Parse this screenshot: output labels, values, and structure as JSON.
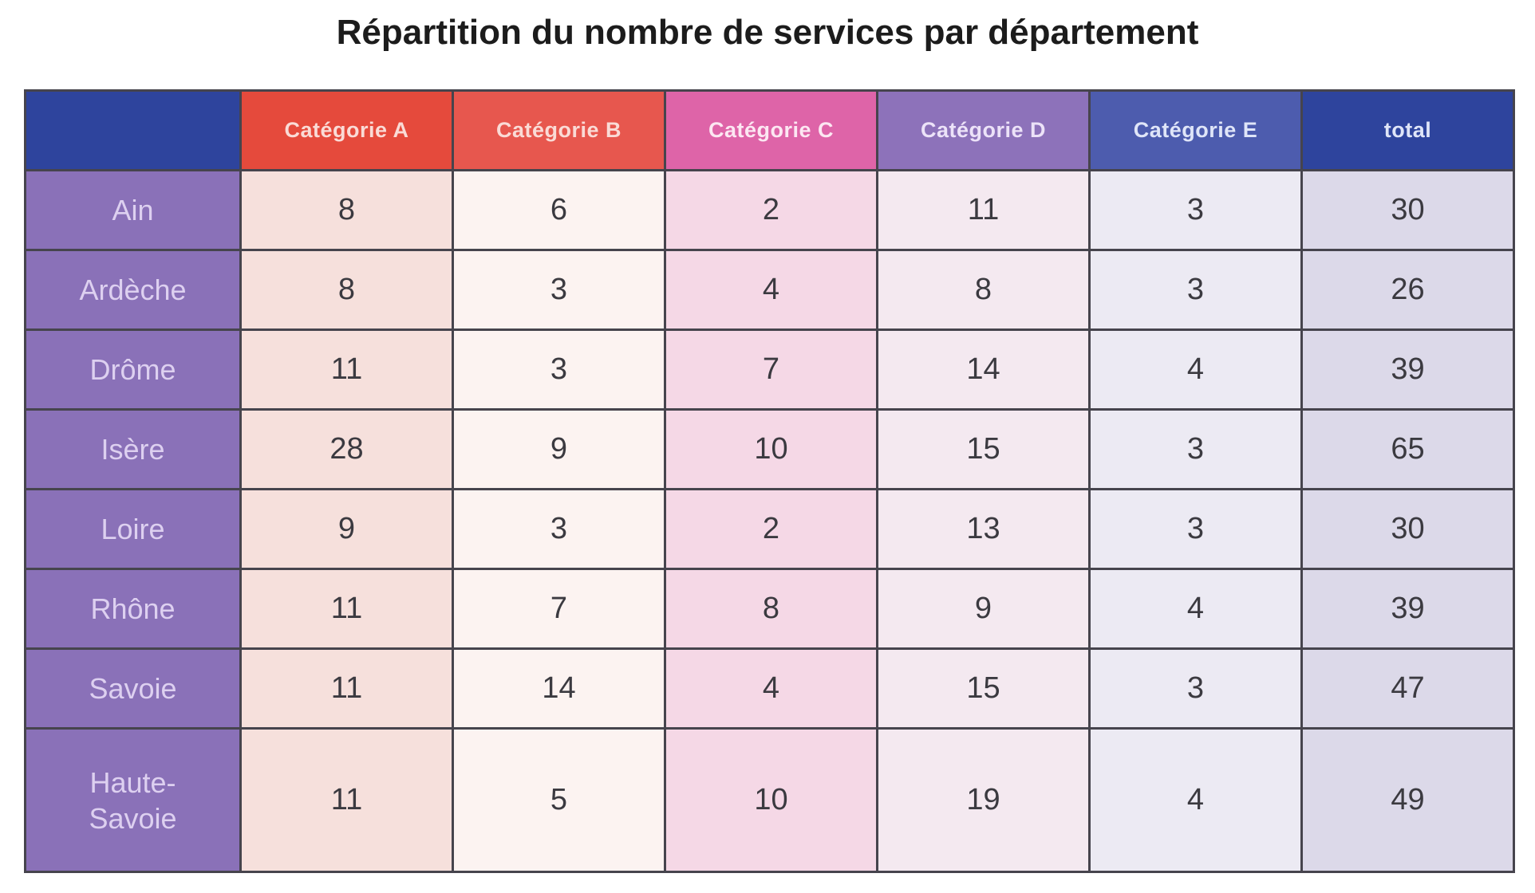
{
  "title": "Répartition du nombre de services par département",
  "colors": {
    "page_bg": "#ffffff",
    "title_text": "#1c1c1c",
    "grid_border": "#46444d",
    "data_text": "#3b3a40",
    "corner_bg": "#2e449d",
    "row_header_bg": "#8a71b8",
    "row_header_text": "#ddd0f0"
  },
  "table": {
    "corner": {
      "bg": "#2e449d"
    },
    "row_header": {
      "bg": "#8a71b8",
      "text": "#ddd0f0"
    },
    "columns": [
      {
        "label": "Catégorie A",
        "header_bg": "#e54a3c",
        "header_text": "#fadbd6",
        "cell_bg": "#f6e0dc"
      },
      {
        "label": "Catégorie B",
        "header_bg": "#e7574e",
        "header_text": "#fadbd6",
        "cell_bg": "#fcf3f1"
      },
      {
        "label": "Catégorie C",
        "header_bg": "#de64a8",
        "header_text": "#fce7f2",
        "cell_bg": "#f5d8e6"
      },
      {
        "label": "Catégorie D",
        "header_bg": "#8d72ba",
        "header_text": "#ece2f8",
        "cell_bg": "#f4e9f0"
      },
      {
        "label": "Catégorie E",
        "header_bg": "#4d5cae",
        "header_text": "#dfe5f8",
        "cell_bg": "#eceaf3"
      },
      {
        "label": "total",
        "header_bg": "#2e449d",
        "header_text": "#dfe5f8",
        "cell_bg": "#dcd9e9"
      }
    ],
    "rows": [
      {
        "label": "Ain",
        "values": [
          "8",
          "6",
          "2",
          "11",
          "3",
          "30"
        ]
      },
      {
        "label": "Ardèche",
        "values": [
          "8",
          "3",
          "4",
          "8",
          "3",
          "26"
        ]
      },
      {
        "label": "Drôme",
        "values": [
          "11",
          "3",
          "7",
          "14",
          "4",
          "39"
        ]
      },
      {
        "label": "Isère",
        "values": [
          "28",
          "9",
          "10",
          "15",
          "3",
          "65"
        ]
      },
      {
        "label": "Loire",
        "values": [
          "9",
          "3",
          "2",
          "13",
          "3",
          "30"
        ]
      },
      {
        "label": "Rhône",
        "values": [
          "11",
          "7",
          "8",
          "9",
          "4",
          "39"
        ]
      },
      {
        "label": "Savoie",
        "values": [
          "11",
          "14",
          "4",
          "15",
          "3",
          "47"
        ]
      },
      {
        "label": "Haute-\nSavoie",
        "values": [
          "11",
          "5",
          "10",
          "19",
          "4",
          "49"
        ]
      }
    ]
  },
  "chart_data": {
    "type": "table",
    "title": "Répartition du nombre de services par département",
    "categories": [
      "Ain",
      "Ardèche",
      "Drôme",
      "Isère",
      "Loire",
      "Rhône",
      "Savoie",
      "Haute-Savoie"
    ],
    "series": [
      {
        "name": "Catégorie A",
        "values": [
          8,
          8,
          11,
          28,
          9,
          11,
          11,
          11
        ]
      },
      {
        "name": "Catégorie B",
        "values": [
          6,
          3,
          3,
          9,
          3,
          7,
          14,
          5
        ]
      },
      {
        "name": "Catégorie C",
        "values": [
          2,
          4,
          7,
          10,
          2,
          8,
          4,
          10
        ]
      },
      {
        "name": "Catégorie D",
        "values": [
          11,
          8,
          14,
          15,
          13,
          9,
          15,
          19
        ]
      },
      {
        "name": "Catégorie E",
        "values": [
          3,
          3,
          4,
          3,
          3,
          4,
          3,
          4
        ]
      },
      {
        "name": "total",
        "values": [
          30,
          26,
          39,
          65,
          30,
          39,
          47,
          49
        ]
      }
    ],
    "layout": {
      "header_row": true,
      "row_labels": true,
      "grid": true
    }
  }
}
